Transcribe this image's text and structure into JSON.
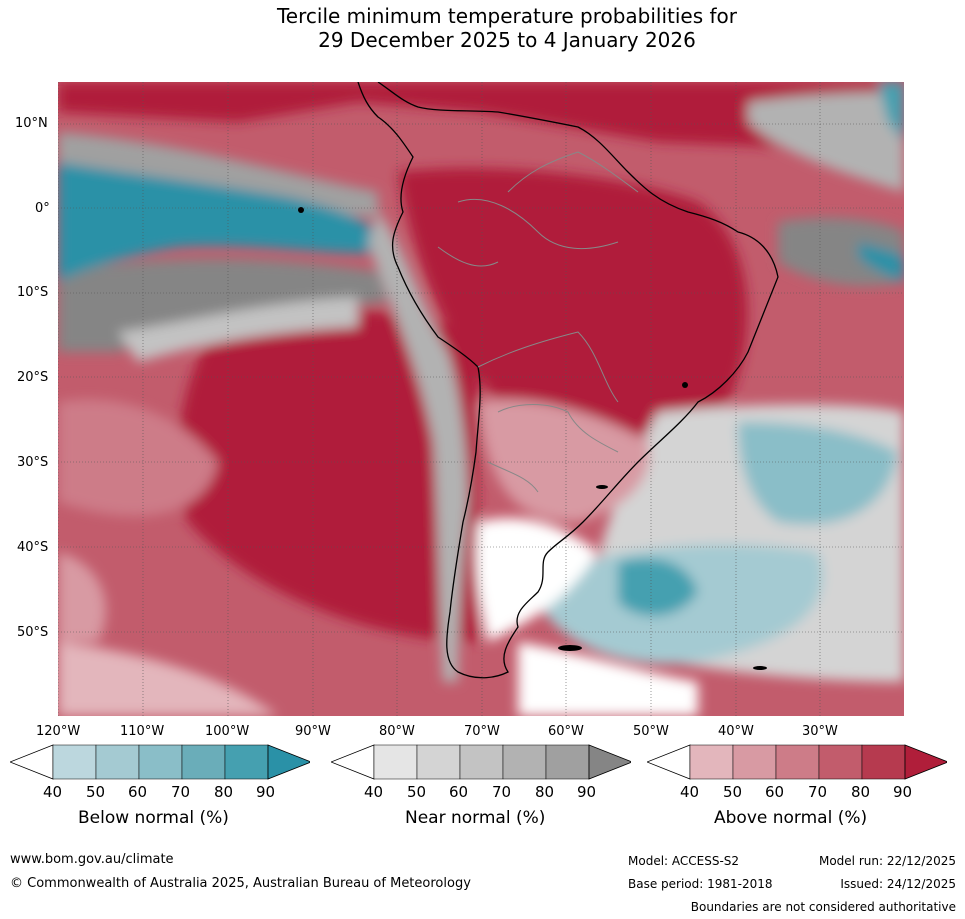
{
  "title": {
    "line1": "Tercile minimum temperature probabilities for",
    "line2": "29 December 2025 to 4 January 2026"
  },
  "map": {
    "lat_labels": [
      "10°N",
      "0°",
      "10°S",
      "20°S",
      "30°S",
      "40°S",
      "50°S"
    ],
    "lon_labels": [
      "120°W",
      "110°W",
      "100°W",
      "90°W",
      "80°W",
      "70°W",
      "60°W",
      "50°W",
      "40°W",
      "30°W"
    ]
  },
  "colorbars": [
    {
      "title": "Below normal (%)",
      "ticks": [
        "40",
        "50",
        "60",
        "70",
        "80",
        "90"
      ],
      "colors": [
        "#ffffff",
        "#bcd7de",
        "#a4cad2",
        "#8abec8",
        "#6aadb9",
        "#45a0b0",
        "#2a91a7"
      ]
    },
    {
      "title": "Near normal (%)",
      "ticks": [
        "40",
        "50",
        "60",
        "70",
        "80",
        "90"
      ],
      "colors": [
        "#ffffff",
        "#e5e5e5",
        "#d4d4d4",
        "#c3c3c3",
        "#b2b2b2",
        "#a0a0a0",
        "#858585"
      ]
    },
    {
      "title": "Above normal (%)",
      "ticks": [
        "40",
        "50",
        "60",
        "70",
        "80",
        "90"
      ],
      "colors": [
        "#ffffff",
        "#e3b6bc",
        "#d89aa3",
        "#cd7c88",
        "#c25c6c",
        "#b63a4f",
        "#b01e3a"
      ]
    }
  ],
  "footer": {
    "website": "www.bom.gov.au/climate",
    "copyright": "© Commonwealth of Australia 2025, Australian Bureau of Meteorology",
    "model": "Model: ACCESS-S2",
    "base_period": "Base period: 1981-2018",
    "model_run": "Model run: 22/12/2025",
    "issued": "Issued: 24/12/2025",
    "disclaimer": "Boundaries are not considered authoritative"
  }
}
